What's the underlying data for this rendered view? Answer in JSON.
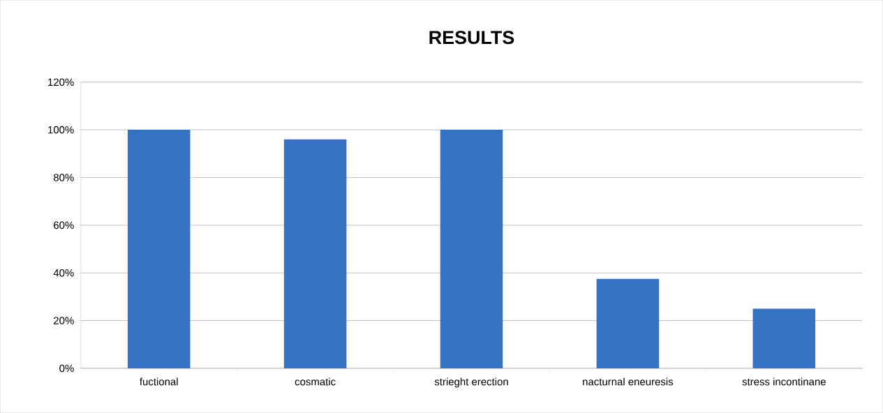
{
  "chart_data": {
    "type": "bar",
    "title": "RESULTS",
    "categories": [
      "fuctional",
      "cosmatic",
      "strieght erection",
      "nacturnal eneuresis",
      "stress incontinane"
    ],
    "values": [
      100,
      96,
      100,
      37.5,
      25
    ],
    "color": "#3572c4",
    "ylim": [
      0,
      120
    ],
    "yticks": [
      {
        "value": 0,
        "label": "0%"
      },
      {
        "value": 20,
        "label": "20%"
      },
      {
        "value": 40,
        "label": "40%"
      },
      {
        "value": 60,
        "label": "60%"
      },
      {
        "value": 80,
        "label": "80%"
      },
      {
        "value": 100,
        "label": "100%"
      },
      {
        "value": 120,
        "label": "120%"
      }
    ],
    "grid": "y"
  }
}
